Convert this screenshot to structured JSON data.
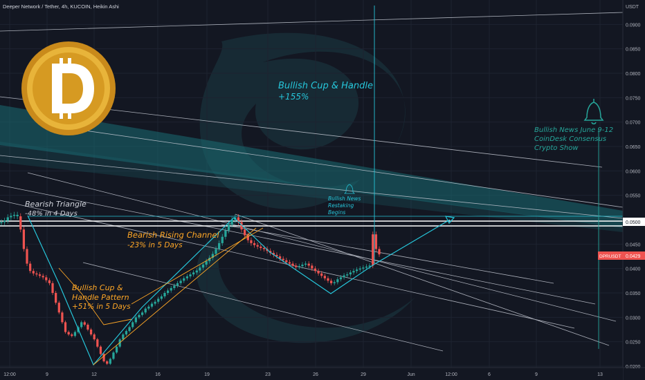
{
  "header": {
    "title": "Deeper Network / Tether, 4h, KUCOIN, Heikin Ashi"
  },
  "axis": {
    "unit": "USDT",
    "y_ticks": [
      "0.0900",
      "0.0850",
      "0.0800",
      "0.0750",
      "0.0700",
      "0.0650",
      "0.0600",
      "0.0550",
      "0.0450",
      "0.0400",
      "0.0350",
      "0.0300",
      "0.0250",
      "0.0200"
    ],
    "x_ticks": [
      "12:00",
      "9",
      "12",
      "16",
      "19",
      "23",
      "26",
      "29",
      "Jun",
      "12:00",
      "6",
      "9",
      "13"
    ]
  },
  "price_tags": {
    "level": "0.0500",
    "symbol": "DPRUSDT",
    "last": "0.0429"
  },
  "annotations": {
    "cup_big_title": "Bullish Cup & Handle",
    "cup_big_pct": "+155%",
    "news_title": "Bullish News June 9-12",
    "news_line2": "CoinDesk Consensus",
    "news_line3": "Crypto Show",
    "triangle_title": "Bearish Triangle",
    "triangle_pct": "-48% in 4 Days",
    "channel_title": "Bearish Rising Channel",
    "channel_pct": "-23% in 5 Days",
    "cup_small_1": "Bullish Cup &",
    "cup_small_2": "Handle Pattern",
    "cup_small_3": "+51% in 5 Days",
    "restake_1": "Bullish News",
    "restake_2": "Restaking",
    "restake_3": "Begins"
  },
  "colors": {
    "up": "#26a69a",
    "down": "#ef5350",
    "teal": "#26c6da",
    "orange": "#ffa726",
    "bg": "#131722"
  },
  "chart_data": {
    "type": "candlestick",
    "title": "Deeper Network / Tether, 4h, KUCOIN, Heikin Ashi",
    "ylim": [
      0.02,
      0.095
    ],
    "resistance": 0.05,
    "last_price": 0.0429,
    "close_path": [
      [
        0.0495,
        0
      ],
      [
        0.0498,
        0
      ],
      [
        0.0505,
        0
      ],
      [
        0.0508,
        0
      ],
      [
        0.051,
        0
      ],
      [
        0.0507,
        0
      ],
      [
        0.048,
        1
      ],
      [
        0.044,
        1
      ],
      [
        0.041,
        1
      ],
      [
        0.0395,
        1
      ],
      [
        0.039,
        1
      ],
      [
        0.0388,
        1
      ],
      [
        0.0385,
        1
      ],
      [
        0.0382,
        1
      ],
      [
        0.0376,
        1
      ],
      [
        0.037,
        1
      ],
      [
        0.035,
        1
      ],
      [
        0.033,
        1
      ],
      [
        0.031,
        1
      ],
      [
        0.029,
        1
      ],
      [
        0.027,
        1
      ],
      [
        0.0265,
        1
      ],
      [
        0.0262,
        1
      ],
      [
        0.027,
        0
      ],
      [
        0.028,
        0
      ],
      [
        0.029,
        0
      ],
      [
        0.0285,
        1
      ],
      [
        0.0275,
        1
      ],
      [
        0.0265,
        1
      ],
      [
        0.0255,
        1
      ],
      [
        0.024,
        1
      ],
      [
        0.0225,
        1
      ],
      [
        0.021,
        1
      ],
      [
        0.0205,
        1
      ],
      [
        0.0215,
        0
      ],
      [
        0.0228,
        0
      ],
      [
        0.024,
        0
      ],
      [
        0.0255,
        0
      ],
      [
        0.0265,
        0
      ],
      [
        0.0272,
        0
      ],
      [
        0.028,
        0
      ],
      [
        0.029,
        0
      ],
      [
        0.03,
        0
      ],
      [
        0.0305,
        0
      ],
      [
        0.031,
        0
      ],
      [
        0.0318,
        0
      ],
      [
        0.0322,
        0
      ],
      [
        0.0328,
        0
      ],
      [
        0.0332,
        0
      ],
      [
        0.0338,
        0
      ],
      [
        0.0343,
        0
      ],
      [
        0.035,
        0
      ],
      [
        0.0355,
        0
      ],
      [
        0.036,
        0
      ],
      [
        0.0365,
        0
      ],
      [
        0.037,
        0
      ],
      [
        0.0375,
        0
      ],
      [
        0.038,
        0
      ],
      [
        0.0384,
        0
      ],
      [
        0.0388,
        0
      ],
      [
        0.0392,
        0
      ],
      [
        0.0396,
        0
      ],
      [
        0.0402,
        0
      ],
      [
        0.0408,
        0
      ],
      [
        0.0415,
        0
      ],
      [
        0.0422,
        0
      ],
      [
        0.043,
        0
      ],
      [
        0.044,
        0
      ],
      [
        0.0452,
        0
      ],
      [
        0.0465,
        0
      ],
      [
        0.0478,
        0
      ],
      [
        0.049,
        0
      ],
      [
        0.05,
        0
      ],
      [
        0.0505,
        0
      ],
      [
        0.0495,
        1
      ],
      [
        0.048,
        1
      ],
      [
        0.0468,
        1
      ],
      [
        0.0458,
        1
      ],
      [
        0.0452,
        1
      ],
      [
        0.0448,
        1
      ],
      [
        0.0445,
        1
      ],
      [
        0.0442,
        1
      ],
      [
        0.044,
        1
      ],
      [
        0.0436,
        1
      ],
      [
        0.0432,
        1
      ],
      [
        0.0428,
        1
      ],
      [
        0.0425,
        1
      ],
      [
        0.042,
        1
      ],
      [
        0.0417,
        1
      ],
      [
        0.0413,
        1
      ],
      [
        0.041,
        1
      ],
      [
        0.0406,
        1
      ],
      [
        0.0403,
        1
      ],
      [
        0.0405,
        0
      ],
      [
        0.0408,
        0
      ],
      [
        0.041,
        0
      ],
      [
        0.0406,
        1
      ],
      [
        0.04,
        1
      ],
      [
        0.0395,
        1
      ],
      [
        0.039,
        1
      ],
      [
        0.0385,
        1
      ],
      [
        0.038,
        1
      ],
      [
        0.0375,
        1
      ],
      [
        0.037,
        1
      ],
      [
        0.0372,
        0
      ],
      [
        0.0378,
        0
      ],
      [
        0.0382,
        0
      ],
      [
        0.0386,
        0
      ],
      [
        0.0388,
        0
      ],
      [
        0.0392,
        0
      ],
      [
        0.0395,
        0
      ],
      [
        0.0398,
        0
      ],
      [
        0.04,
        0
      ],
      [
        0.0402,
        0
      ],
      [
        0.0404,
        0
      ],
      [
        0.0406,
        0
      ],
      [
        0.047,
        1
      ],
      [
        0.044,
        1
      ],
      [
        0.0429,
        1
      ]
    ]
  }
}
